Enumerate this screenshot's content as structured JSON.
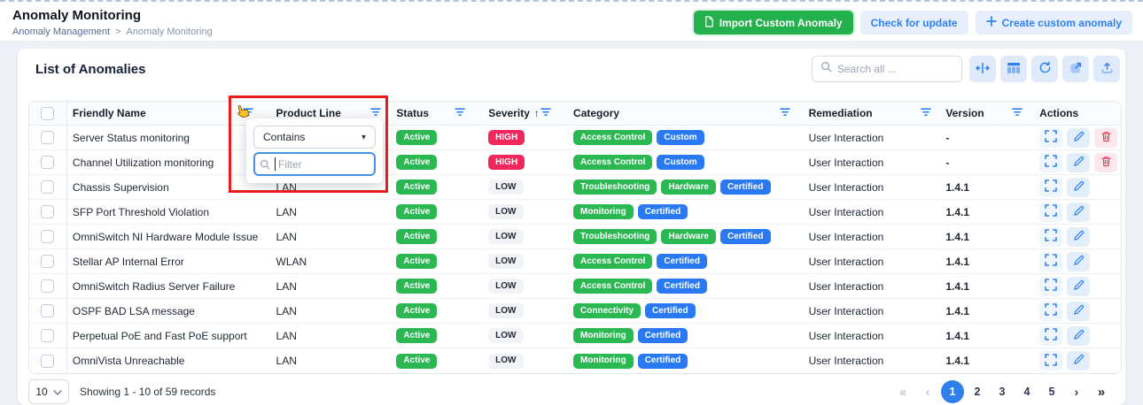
{
  "header": {
    "title": "Anomaly Monitoring",
    "breadcrumb": {
      "parent": "Anomaly Management",
      "separator": ">",
      "current": "Anomaly Monitoring"
    },
    "buttons": {
      "import_label": "Import Custom Anomaly",
      "check_update_label": "Check for update",
      "create_label": "Create custom anomaly",
      "create_plus": "+"
    }
  },
  "panel": {
    "title": "List of Anomalies",
    "search_placeholder": "Search all ...",
    "toolbar_icons": [
      "fit-columns-icon",
      "table-columns-icon",
      "refresh-icon",
      "open-external-icon",
      "upload-icon"
    ]
  },
  "filter_popup": {
    "operator_value": "Contains",
    "operator_caret": "▾",
    "input_value": "",
    "input_placeholder": "Filter"
  },
  "table": {
    "columns": [
      {
        "label": "",
        "type": "checkbox"
      },
      {
        "label": "Friendly Name",
        "filter": true
      },
      {
        "label": "Product Line",
        "filter": true
      },
      {
        "label": "Status",
        "filter": true
      },
      {
        "label": "Severity",
        "filter": true,
        "sort_indicator": "↑"
      },
      {
        "label": "Category",
        "filter": true
      },
      {
        "label": "Remediation",
        "filter": true
      },
      {
        "label": "Version",
        "filter": true
      },
      {
        "label": "Actions",
        "filter": false
      }
    ],
    "rows": [
      {
        "friendly_name": "Server Status monitoring",
        "product_line": "",
        "status": "Active",
        "severity": "HIGH",
        "categories": [
          {
            "label": "Access Control",
            "color": "green"
          },
          {
            "label": "Custom",
            "color": "blue"
          }
        ],
        "remediation": "User Interaction",
        "version": "-",
        "actions": [
          "expand",
          "edit",
          "delete"
        ]
      },
      {
        "friendly_name": "Channel Utilization monitoring",
        "product_line": "",
        "status": "Active",
        "severity": "HIGH",
        "categories": [
          {
            "label": "Access Control",
            "color": "green"
          },
          {
            "label": "Custom",
            "color": "blue"
          }
        ],
        "remediation": "User Interaction",
        "version": "-",
        "actions": [
          "expand",
          "edit",
          "delete"
        ]
      },
      {
        "friendly_name": "Chassis Supervision",
        "product_line": "LAN",
        "status": "Active",
        "severity": "LOW",
        "categories": [
          {
            "label": "Troubleshooting",
            "color": "green"
          },
          {
            "label": "Hardware",
            "color": "green"
          },
          {
            "label": "Certified",
            "color": "blue"
          }
        ],
        "remediation": "User Interaction",
        "version": "1.4.1",
        "actions": [
          "expand",
          "edit"
        ]
      },
      {
        "friendly_name": "SFP Port Threshold Violation",
        "product_line": "LAN",
        "status": "Active",
        "severity": "LOW",
        "categories": [
          {
            "label": "Monitoring",
            "color": "green"
          },
          {
            "label": "Certified",
            "color": "blue"
          }
        ],
        "remediation": "User Interaction",
        "version": "1.4.1",
        "actions": [
          "expand",
          "edit"
        ]
      },
      {
        "friendly_name": "OmniSwitch NI Hardware Module Issue",
        "product_line": "LAN",
        "status": "Active",
        "severity": "LOW",
        "categories": [
          {
            "label": "Troubleshooting",
            "color": "green"
          },
          {
            "label": "Hardware",
            "color": "green"
          },
          {
            "label": "Certified",
            "color": "blue"
          }
        ],
        "remediation": "User Interaction",
        "version": "1.4.1",
        "actions": [
          "expand",
          "edit"
        ]
      },
      {
        "friendly_name": "Stellar AP Internal Error",
        "product_line": "WLAN",
        "status": "Active",
        "severity": "LOW",
        "categories": [
          {
            "label": "Access Control",
            "color": "green"
          },
          {
            "label": "Certified",
            "color": "blue"
          }
        ],
        "remediation": "User Interaction",
        "version": "1.4.1",
        "actions": [
          "expand",
          "edit"
        ]
      },
      {
        "friendly_name": "OmniSwitch Radius Server Failure",
        "product_line": "LAN",
        "status": "Active",
        "severity": "LOW",
        "categories": [
          {
            "label": "Access Control",
            "color": "green"
          },
          {
            "label": "Certified",
            "color": "blue"
          }
        ],
        "remediation": "User Interaction",
        "version": "1.4.1",
        "actions": [
          "expand",
          "edit"
        ]
      },
      {
        "friendly_name": "OSPF BAD LSA message",
        "product_line": "LAN",
        "status": "Active",
        "severity": "LOW",
        "categories": [
          {
            "label": "Connectivity",
            "color": "green"
          },
          {
            "label": "Certified",
            "color": "blue"
          }
        ],
        "remediation": "User Interaction",
        "version": "1.4.1",
        "actions": [
          "expand",
          "edit"
        ]
      },
      {
        "friendly_name": "Perpetual PoE and Fast PoE support",
        "product_line": "LAN",
        "status": "Active",
        "severity": "LOW",
        "categories": [
          {
            "label": "Monitoring",
            "color": "green"
          },
          {
            "label": "Certified",
            "color": "blue"
          }
        ],
        "remediation": "User Interaction",
        "version": "1.4.1",
        "actions": [
          "expand",
          "edit"
        ]
      },
      {
        "friendly_name": "OmniVista Unreachable",
        "product_line": "LAN",
        "status": "Active",
        "severity": "LOW",
        "categories": [
          {
            "label": "Monitoring",
            "color": "green"
          },
          {
            "label": "Certified",
            "color": "blue"
          }
        ],
        "remediation": "User Interaction",
        "version": "1.4.1",
        "actions": [
          "expand",
          "edit"
        ]
      }
    ]
  },
  "footer": {
    "page_size": "10",
    "summary": "Showing 1 - 10 of 59 records",
    "pages": [
      "1",
      "2",
      "3",
      "4",
      "5"
    ],
    "active_page": "1",
    "first_chevron": "«",
    "prev_chevron": "‹",
    "next_chevron": "›",
    "last_chevron": "»"
  },
  "colors": {
    "accent_blue": "#2f80ed",
    "badge_green": "#2bb853",
    "badge_blue": "#2979f2",
    "severity_high": "#f1265c",
    "severity_low_bg": "#f2f3f6",
    "button_green": "#23b14d",
    "annotation_red": "#e81c1c"
  }
}
